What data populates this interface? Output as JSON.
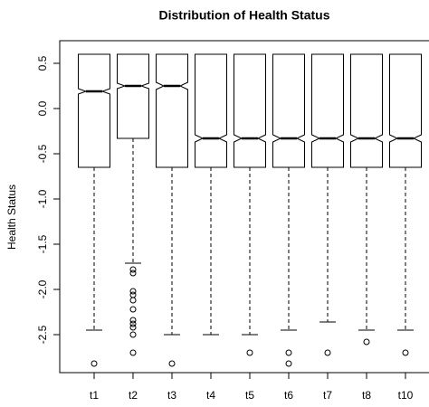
{
  "chart_data": {
    "type": "boxplot",
    "title": "Distribution of Health Status",
    "y_label": "Health Status",
    "categories": [
      "t1",
      "t2",
      "t3",
      "t4",
      "t5",
      "t6",
      "t7",
      "t8",
      "t10"
    ],
    "boxes": [
      {
        "whisker_low": -2.45,
        "q1": -0.65,
        "notch_low": 0.16,
        "median": 0.19,
        "notch_high": 0.22,
        "q3": 0.6,
        "whisker_high": 0.6,
        "outliers": [
          -2.82
        ]
      },
      {
        "whisker_low": -1.71,
        "q1": -0.33,
        "notch_low": 0.22,
        "median": 0.25,
        "notch_high": 0.28,
        "q3": 0.6,
        "whisker_high": 0.6,
        "outliers": [
          -1.78,
          -1.82,
          -2.02,
          -2.06,
          -2.12,
          -2.22,
          -2.34,
          -2.38,
          -2.42,
          -2.5,
          -2.7
        ]
      },
      {
        "whisker_low": -2.5,
        "q1": -0.65,
        "notch_low": 0.21,
        "median": 0.25,
        "notch_high": 0.29,
        "q3": 0.6,
        "whisker_high": 0.6,
        "outliers": [
          -2.82
        ]
      },
      {
        "whisker_low": -2.5,
        "q1": -0.65,
        "notch_low": -0.37,
        "median": -0.33,
        "notch_high": -0.29,
        "q3": 0.6,
        "whisker_high": 0.6,
        "outliers": []
      },
      {
        "whisker_low": -2.5,
        "q1": -0.65,
        "notch_low": -0.37,
        "median": -0.33,
        "notch_high": -0.29,
        "q3": 0.6,
        "whisker_high": 0.6,
        "outliers": [
          -2.7
        ]
      },
      {
        "whisker_low": -2.45,
        "q1": -0.65,
        "notch_low": -0.37,
        "median": -0.33,
        "notch_high": -0.29,
        "q3": 0.6,
        "whisker_high": 0.6,
        "outliers": [
          -2.7,
          -2.82
        ]
      },
      {
        "whisker_low": -2.36,
        "q1": -0.65,
        "notch_low": -0.37,
        "median": -0.33,
        "notch_high": -0.29,
        "q3": 0.6,
        "whisker_high": 0.6,
        "outliers": [
          -2.7
        ]
      },
      {
        "whisker_low": -2.45,
        "q1": -0.65,
        "notch_low": -0.37,
        "median": -0.33,
        "notch_high": -0.29,
        "q3": 0.6,
        "whisker_high": 0.6,
        "outliers": [
          -2.58
        ]
      },
      {
        "whisker_low": -2.45,
        "q1": -0.65,
        "notch_low": -0.37,
        "median": -0.33,
        "notch_high": -0.29,
        "q3": 0.6,
        "whisker_high": 0.6,
        "outliers": [
          -2.7
        ]
      }
    ],
    "ylim": [
      -2.92,
      0.75
    ],
    "yticks": [
      0.5,
      {
        "value": 0,
        "label": "0.0"
      },
      -0.5,
      {
        "value": -1,
        "label": "-1.0"
      },
      -1.5,
      {
        "value": -2,
        "label": "-2.0"
      },
      -2.5
    ]
  }
}
